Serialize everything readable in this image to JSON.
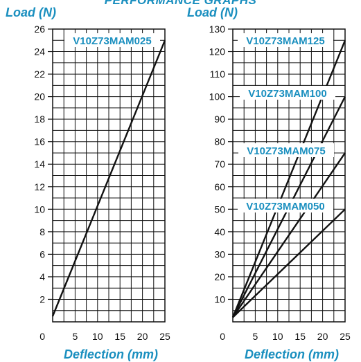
{
  "page": {
    "title": "PERFORMANCE GRAPHS"
  },
  "colors": {
    "accent": "#1a8fbf",
    "line": "#111111",
    "grid": "#111111"
  },
  "chart_data": [
    {
      "type": "line",
      "ylabel": "Load (N)",
      "xlabel": "Deflection (mm)",
      "xlim": [
        0,
        25
      ],
      "ylim": [
        0,
        26
      ],
      "xticks": [
        0,
        5,
        10,
        15,
        20,
        25
      ],
      "yticks": [
        2,
        4,
        6,
        8,
        10,
        12,
        14,
        16,
        18,
        20,
        22,
        24,
        26
      ],
      "grid": true,
      "series": [
        {
          "name": "V10Z73MAM025",
          "x": [
            0,
            25
          ],
          "y": [
            0.5,
            25
          ]
        }
      ]
    },
    {
      "type": "line",
      "ylabel": "Load (N)",
      "xlabel": "Deflection (mm)",
      "xlim": [
        0,
        25
      ],
      "ylim": [
        0,
        130
      ],
      "xticks": [
        0,
        5,
        10,
        15,
        20,
        25
      ],
      "yticks": [
        10,
        20,
        30,
        40,
        50,
        60,
        70,
        80,
        90,
        100,
        110,
        120,
        130
      ],
      "grid": true,
      "series": [
        {
          "name": "V10Z73MAM125",
          "x": [
            0,
            25
          ],
          "y": [
            2,
            125
          ]
        },
        {
          "name": "V10Z73MAM100",
          "x": [
            0,
            25
          ],
          "y": [
            2,
            100
          ]
        },
        {
          "name": "V10Z73MAM075",
          "x": [
            0,
            25
          ],
          "y": [
            2,
            75
          ]
        },
        {
          "name": "V10Z73MAM050",
          "x": [
            0,
            25
          ],
          "y": [
            2,
            50
          ]
        }
      ]
    }
  ]
}
